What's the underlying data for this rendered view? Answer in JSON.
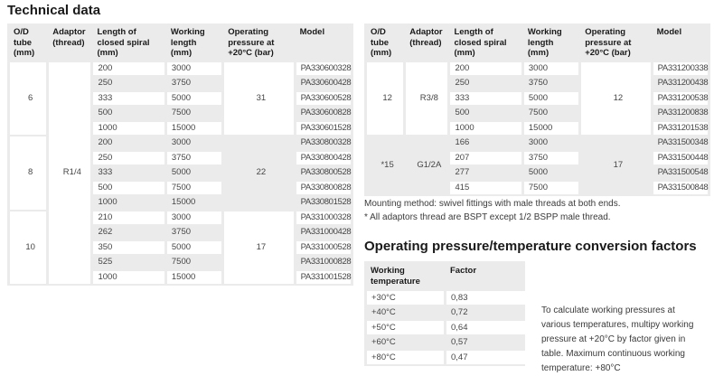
{
  "title": "Technical data",
  "spec_columns": [
    "O/D\ntube\n(mm)",
    "Adaptor\n(thread)",
    "Length of\nclosed spiral\n(mm)",
    "Working\nlength\n(mm)",
    "Operating\npressure at\n+20°C (bar)",
    "Model"
  ],
  "left_table": {
    "adaptor_full": "R1/4",
    "groups": [
      {
        "od": "6",
        "pressure": "31",
        "od_gray": false,
        "pressure_gray": false,
        "rows": [
          [
            "200",
            "3000",
            "PA330600328"
          ],
          [
            "250",
            "3750",
            "PA330600428"
          ],
          [
            "333",
            "5000",
            "PA330600528"
          ],
          [
            "500",
            "7500",
            "PA330600828"
          ],
          [
            "1000",
            "15000",
            "PA330601528"
          ]
        ]
      },
      {
        "od": "8",
        "pressure": "22",
        "od_gray": false,
        "pressure_gray": true,
        "rows": [
          [
            "200",
            "3000",
            "PA330800328"
          ],
          [
            "250",
            "3750",
            "PA330800428"
          ],
          [
            "333",
            "5000",
            "PA330800528"
          ],
          [
            "500",
            "7500",
            "PA330800828"
          ],
          [
            "1000",
            "15000",
            "PA330801528"
          ]
        ]
      },
      {
        "od": "10",
        "pressure": "17",
        "od_gray": false,
        "pressure_gray": false,
        "rows": [
          [
            "210",
            "3000",
            "PA331000328"
          ],
          [
            "262",
            "3750",
            "PA331000428"
          ],
          [
            "350",
            "5000",
            "PA331000528"
          ],
          [
            "525",
            "7500",
            "PA331000828"
          ],
          [
            "1000",
            "15000",
            "PA331001528"
          ]
        ]
      }
    ]
  },
  "right_table": {
    "groups": [
      {
        "od": "12",
        "adaptor": "R3/8",
        "pressure": "12",
        "od_gray": false,
        "adaptor_gray": false,
        "pressure_gray": false,
        "rows": [
          [
            "200",
            "3000",
            "PA331200338"
          ],
          [
            "250",
            "3750",
            "PA331200438"
          ],
          [
            "333",
            "5000",
            "PA331200538"
          ],
          [
            "500",
            "7500",
            "PA331200838"
          ],
          [
            "1000",
            "15000",
            "PA331201538"
          ]
        ]
      },
      {
        "od": "*15",
        "adaptor": "G1/2A",
        "pressure": "17",
        "od_gray": true,
        "adaptor_gray": true,
        "pressure_gray": true,
        "rows": [
          [
            "166",
            "3000",
            "PA331500348"
          ],
          [
            "207",
            "3750",
            "PA331500448"
          ],
          [
            "277",
            "5000",
            "PA331500548"
          ],
          [
            "415",
            "7500",
            "PA331500848"
          ]
        ]
      }
    ]
  },
  "notes": {
    "mounting": "Mounting method: swivel fittings with male threads at both ends.",
    "adaptors": "* All adaptors thread are BSPT except 1/2 BSPP male thread."
  },
  "conversion": {
    "heading": "Operating pressure/temperature conversion factors",
    "columns": [
      "Working\ntemperature",
      "Factor"
    ],
    "rows": [
      [
        "+30°C",
        "0,83"
      ],
      [
        "+40°C",
        "0,72"
      ],
      [
        "+50°C",
        "0,64"
      ],
      [
        "+60°C",
        "0,57"
      ],
      [
        "+80°C",
        "0,47"
      ]
    ],
    "description": "To calculate working pressures at\nvarious temperatures, multipy working\npressure at +20°C by factor given in\ntable. Maximum continuous working\ntemperature: +80°C"
  }
}
